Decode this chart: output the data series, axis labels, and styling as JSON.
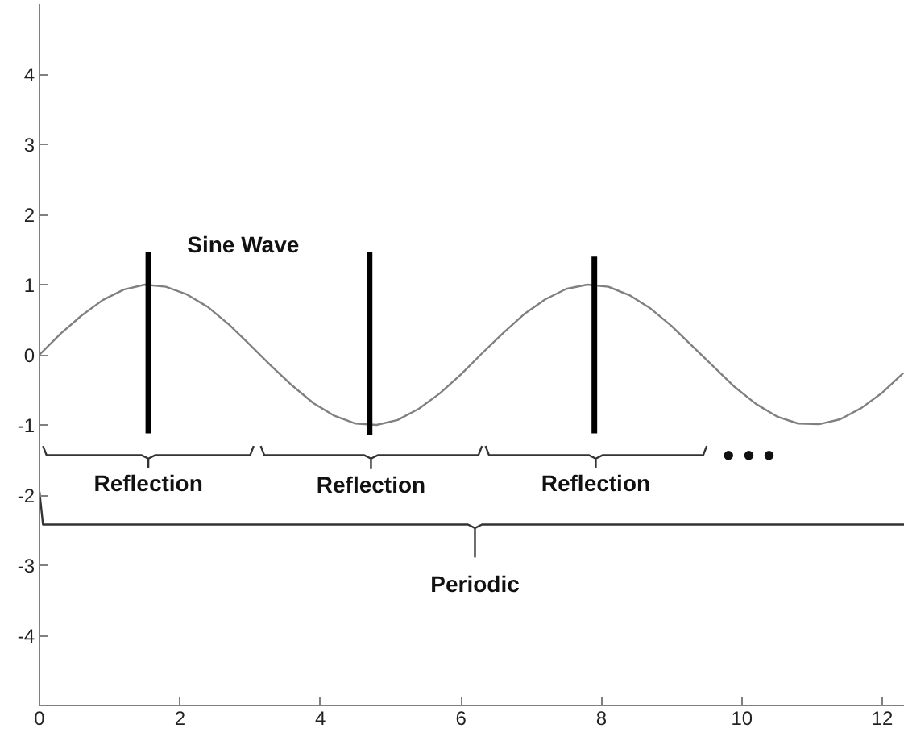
{
  "chart_data": {
    "type": "line",
    "xlim": [
      0,
      12.32
    ],
    "ylim": [
      -5,
      5
    ],
    "xticks": [
      0,
      2,
      4,
      6,
      8,
      10,
      12
    ],
    "yticks": [
      -4,
      -3,
      -2,
      -1,
      0,
      1,
      2,
      3,
      4
    ],
    "grid": false,
    "marker": "none",
    "series": [
      {
        "color": "#808080",
        "x": [
          0,
          0.3,
          0.6,
          0.9,
          1.2,
          1.5,
          1.8,
          2.1,
          2.4,
          2.7,
          3.0,
          3.3,
          3.6,
          3.9,
          4.2,
          4.5,
          4.8,
          5.1,
          5.4,
          5.7,
          6.0,
          6.3,
          6.6,
          6.9,
          7.2,
          7.5,
          7.8,
          8.1,
          8.4,
          8.7,
          9.0,
          9.3,
          9.6,
          9.9,
          10.2,
          10.5,
          10.8,
          11.1,
          11.4,
          11.7,
          12.0,
          12.3
        ],
        "values": [
          0,
          0.3,
          0.56,
          0.78,
          0.93,
          1.0,
          0.97,
          0.86,
          0.68,
          0.43,
          0.14,
          -0.16,
          -0.44,
          -0.69,
          -0.87,
          -0.98,
          -1.0,
          -0.93,
          -0.77,
          -0.55,
          -0.28,
          0.02,
          0.31,
          0.58,
          0.79,
          0.94,
          1.0,
          0.97,
          0.85,
          0.66,
          0.41,
          0.12,
          -0.17,
          -0.46,
          -0.7,
          -0.88,
          -0.98,
          -0.99,
          -0.92,
          -0.76,
          -0.54,
          -0.26
        ]
      },
      {
        "color": "#000000",
        "x": [
          1.55,
          1.55
        ],
        "values": [
          -1.12,
          1.46
        ]
      },
      {
        "color": "#000000",
        "x": [
          4.7,
          4.7
        ],
        "values": [
          -1.15,
          1.46
        ]
      },
      {
        "color": "#000000",
        "x": [
          7.9,
          7.9
        ],
        "values": [
          -1.12,
          1.4
        ]
      },
      {
        "color": "#333333",
        "x": [
          0.05,
          0.1,
          1.45,
          1.55,
          1.55,
          1.55,
          1.65,
          3.0,
          3.05
        ],
        "values": [
          -1.3,
          -1.43,
          -1.43,
          -1.48,
          -1.6,
          -1.48,
          -1.43,
          -1.43,
          -1.3
        ]
      },
      {
        "color": "#333333",
        "x": [
          3.15,
          3.2,
          4.62,
          4.72,
          4.72,
          4.72,
          4.82,
          6.25,
          6.3
        ],
        "values": [
          -1.3,
          -1.43,
          -1.43,
          -1.48,
          -1.62,
          -1.48,
          -1.43,
          -1.43,
          -1.3
        ]
      },
      {
        "color": "#333333",
        "x": [
          6.35,
          6.4,
          7.82,
          7.92,
          7.92,
          7.92,
          8.02,
          9.45,
          9.5
        ],
        "values": [
          -1.3,
          -1.43,
          -1.43,
          -1.48,
          -1.6,
          -1.48,
          -1.43,
          -1.43,
          -1.3
        ]
      },
      {
        "color": "#333333",
        "x": [
          0,
          0.05,
          6.1,
          6.2,
          6.2,
          6.2,
          6.3,
          12.32
        ],
        "values": [
          -1.95,
          -2.42,
          -2.42,
          -2.47,
          -2.88,
          -2.47,
          -2.42,
          -2.42
        ]
      }
    ],
    "annotations": [
      "Sine Wave",
      "Reflection",
      "Reflection",
      "Reflection",
      "Periodic",
      "• • •"
    ]
  }
}
